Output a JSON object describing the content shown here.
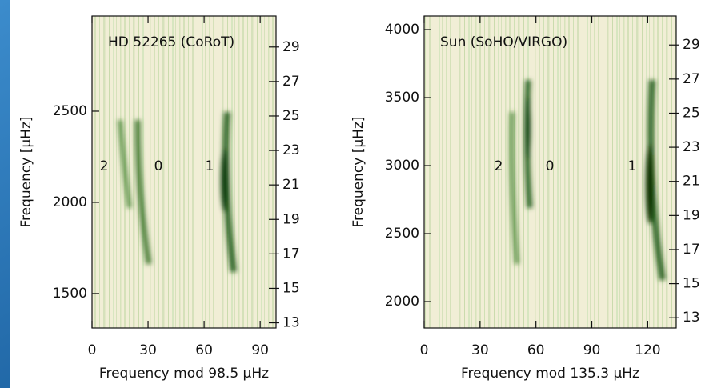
{
  "chart_data": [
    {
      "type": "echelle",
      "title": "HD 52265 (CoRoT)",
      "xlabel": "Frequency mod 98.5 μHz",
      "ylabel": "Frequency [μHz]",
      "xlim": [
        0,
        98.5
      ],
      "xticks": [
        0,
        30,
        60,
        90
      ],
      "ylim": [
        1311,
        3022
      ],
      "yticks": [
        1500,
        2000,
        2500
      ],
      "y2lim": [
        12.7,
        30.8
      ],
      "y2ticks": [
        13,
        15,
        17,
        19,
        21,
        23,
        25,
        27,
        29
      ],
      "annotations": [
        "2",
        "0",
        "1"
      ]
    },
    {
      "type": "echelle",
      "title": "Sun (SoHO/VIRGO)",
      "xlabel": "Frequency mod 135.3 μHz",
      "ylabel": "Frequency [μHz]",
      "xlim": [
        0,
        135.3
      ],
      "xticks": [
        0,
        30,
        60,
        90,
        120
      ],
      "ylim": [
        1806,
        4100
      ],
      "yticks": [
        2000,
        2500,
        3000,
        3500,
        4000
      ],
      "y2lim": [
        12.4,
        30.7
      ],
      "y2ticks": [
        13,
        15,
        17,
        19,
        21,
        23,
        25,
        27,
        29
      ],
      "annotations": [
        "2",
        "0",
        "1"
      ]
    }
  ]
}
